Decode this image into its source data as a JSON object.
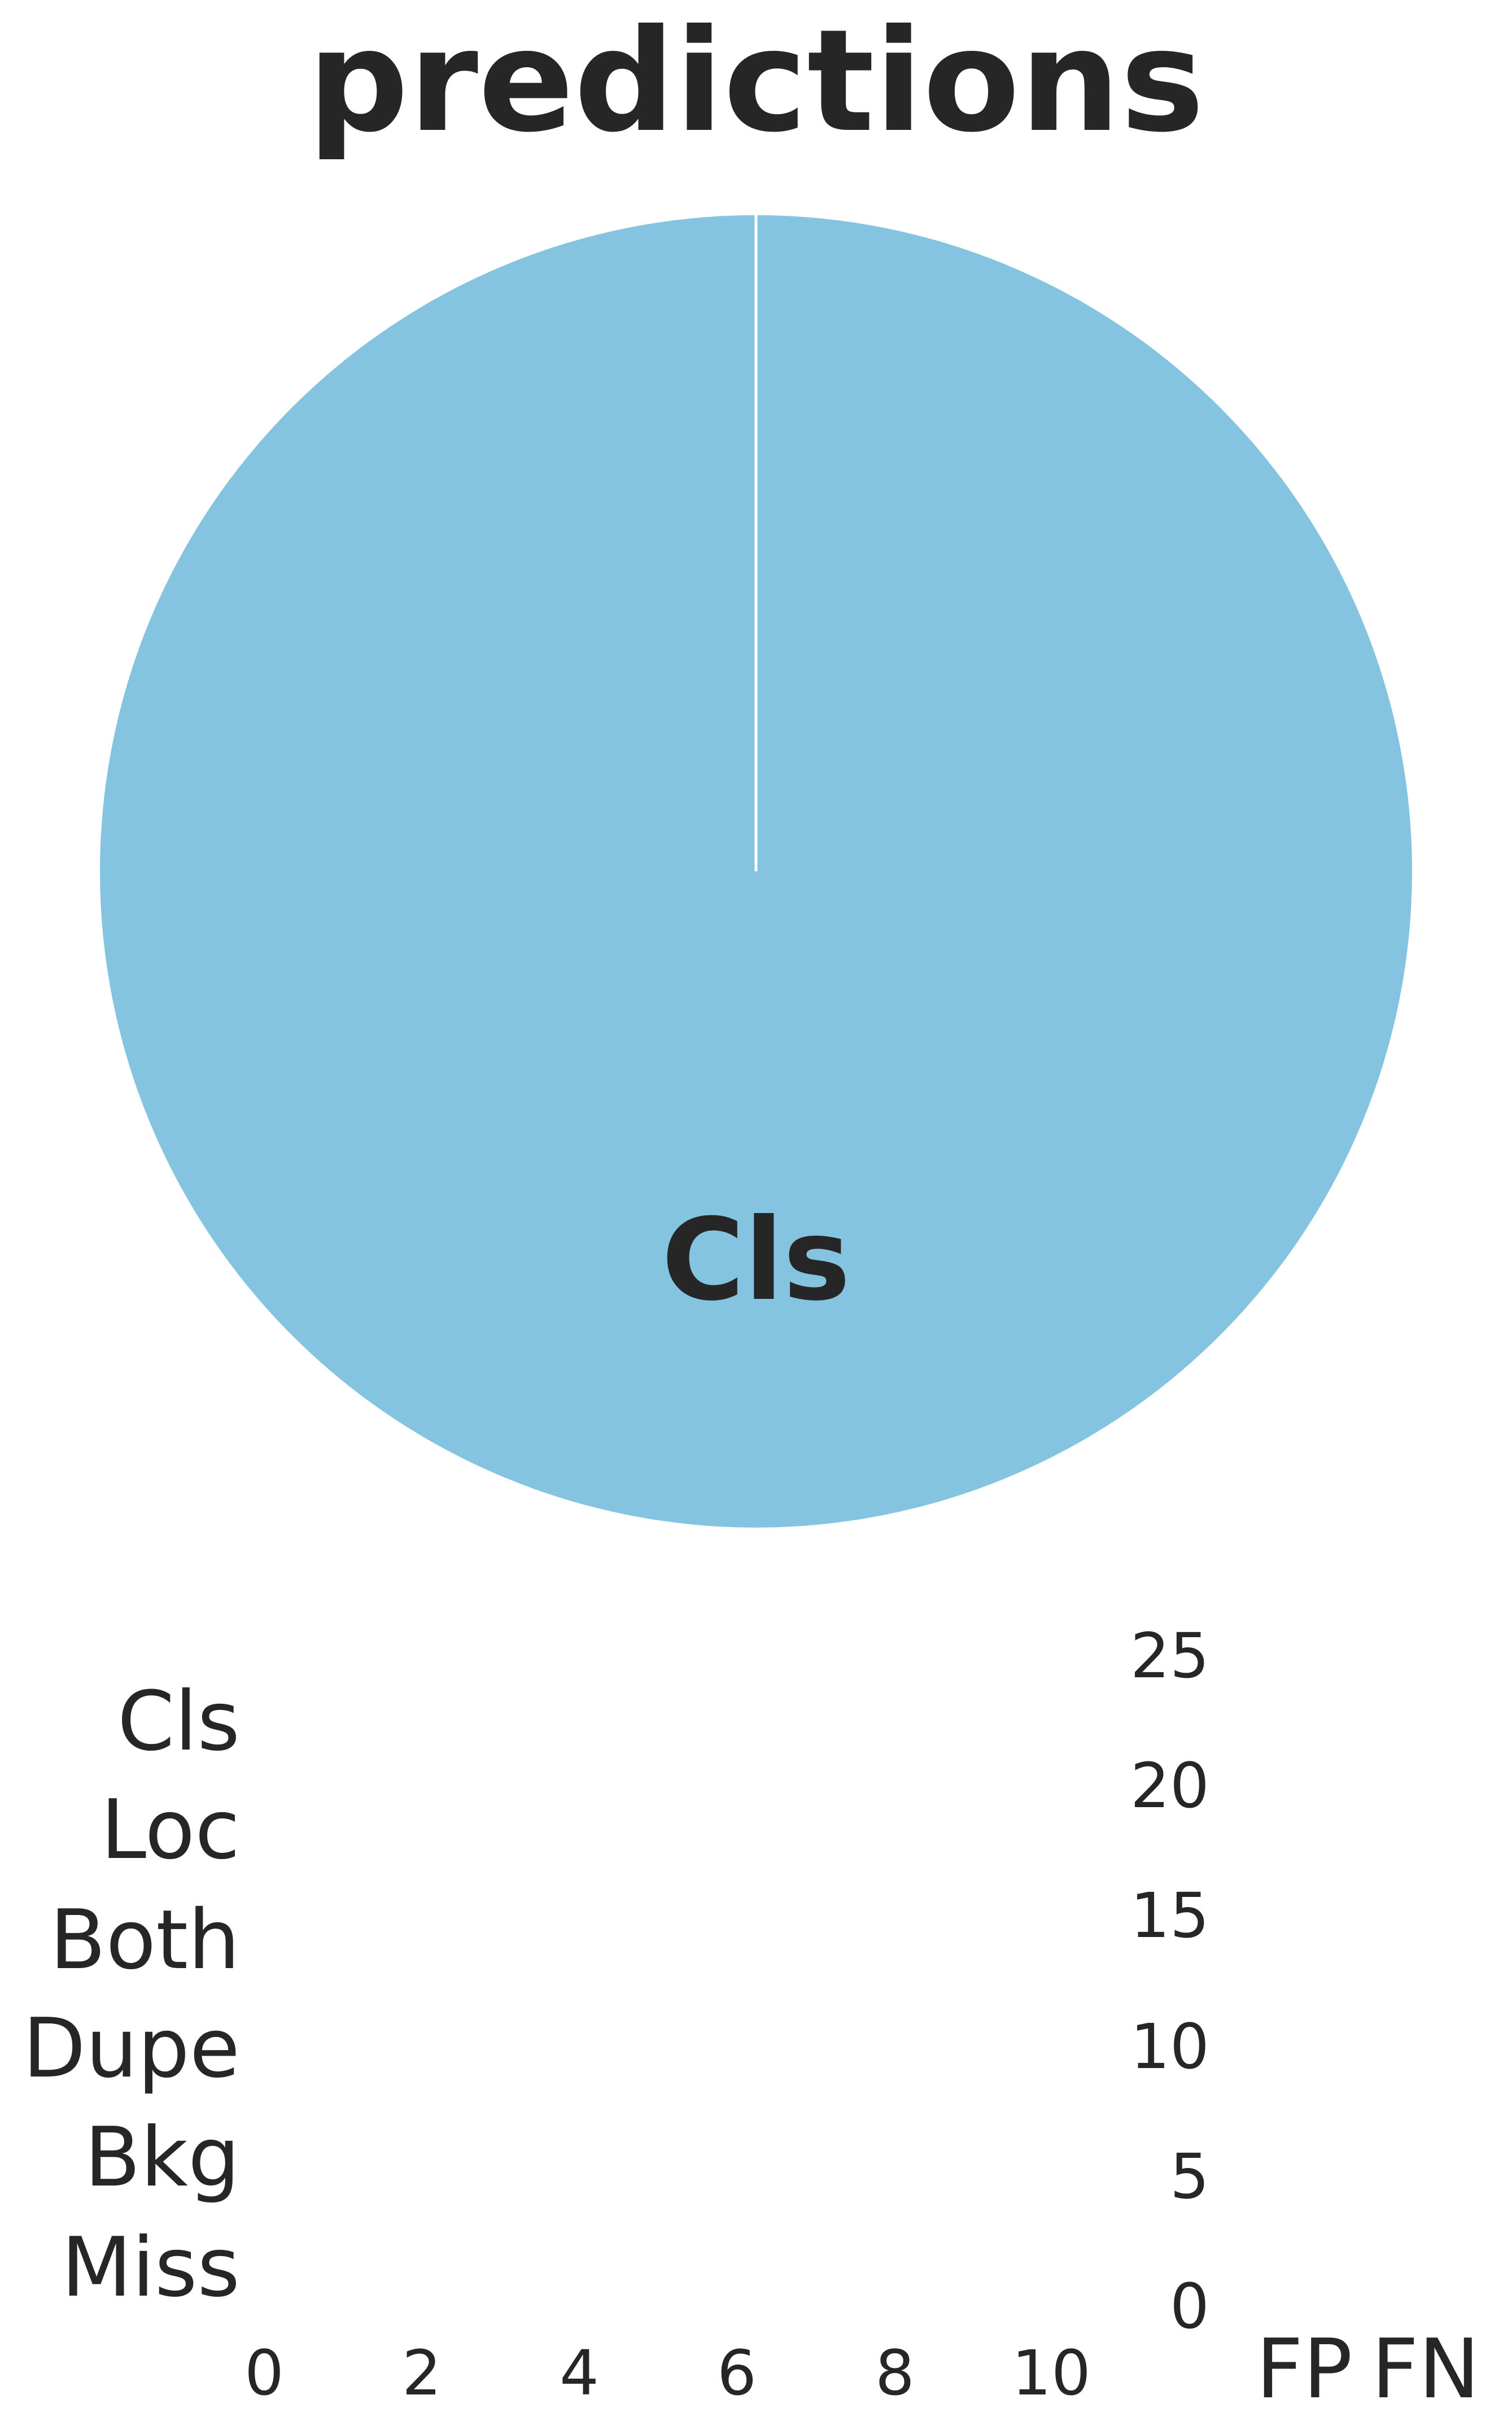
{
  "chart_data": [
    {
      "type": "pie",
      "title": "predictions",
      "slices": [
        {
          "label": "Cls",
          "value": 1,
          "color": "#85c4e1"
        }
      ]
    },
    {
      "type": "bar",
      "orientation": "horizontal",
      "categories": [
        "Cls",
        "Loc",
        "Both",
        "Dupe",
        "Bkg",
        "Miss"
      ],
      "values": [
        0,
        0,
        0,
        0,
        0,
        0
      ],
      "xticks": [
        "0",
        "2",
        "4",
        "6",
        "8",
        "10"
      ],
      "xlim": [
        0,
        10
      ]
    },
    {
      "type": "bar",
      "categories": [
        "FP",
        "FN"
      ],
      "values": [
        0,
        0
      ],
      "yticks": [
        "0",
        "5",
        "10",
        "15",
        "20",
        "25"
      ],
      "ylim": [
        0,
        25
      ]
    }
  ]
}
